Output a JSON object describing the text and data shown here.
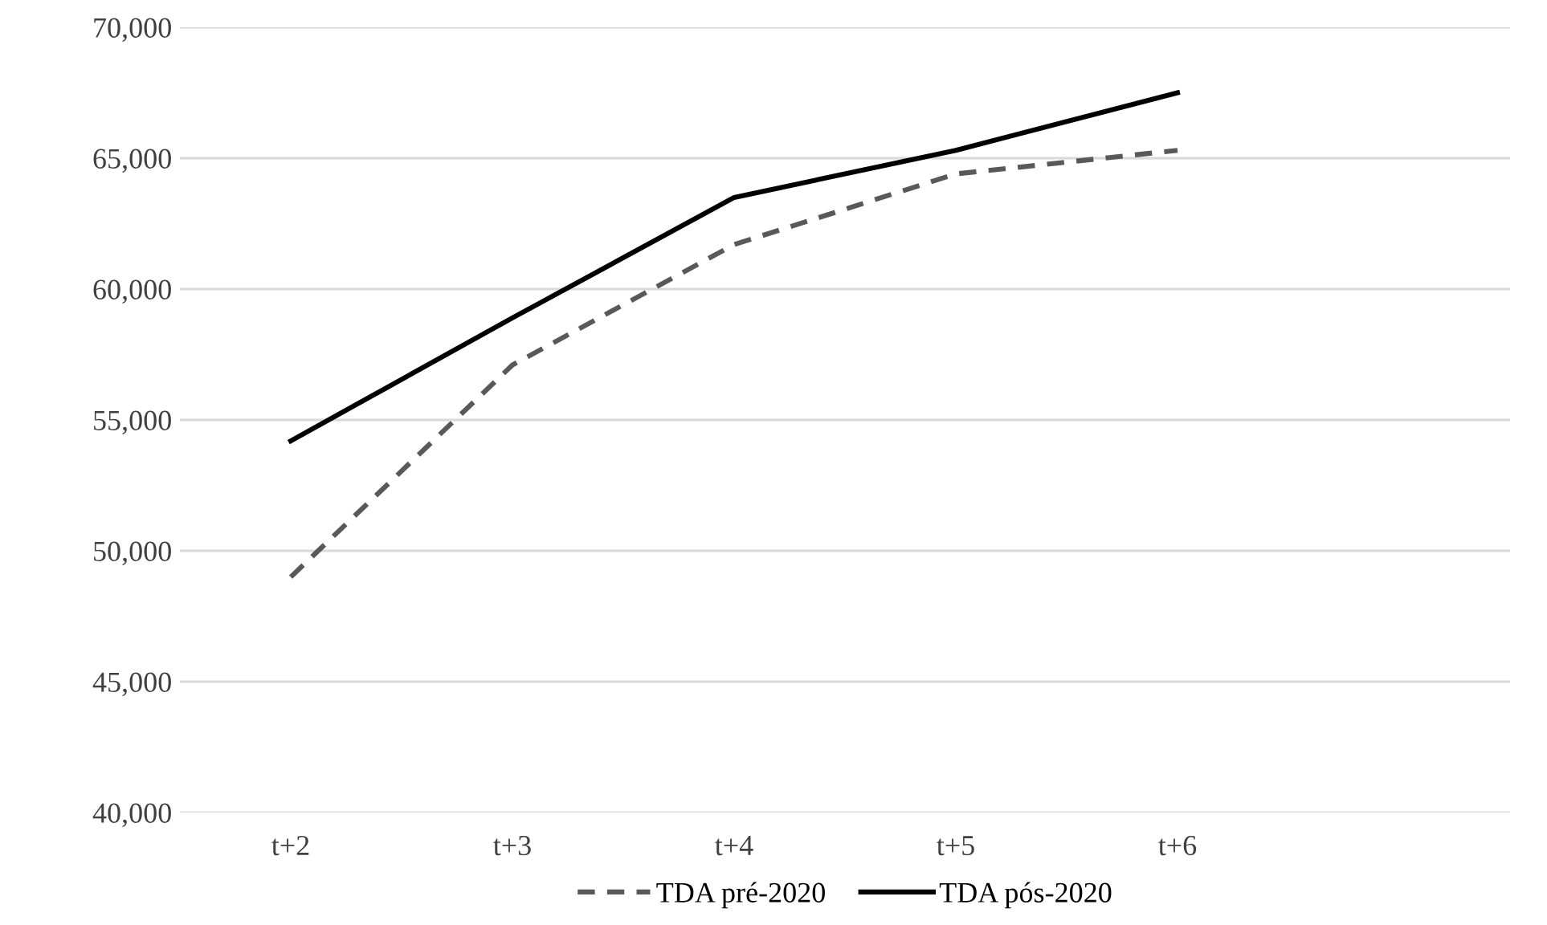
{
  "chart_data": {
    "type": "line",
    "categories": [
      "t+2",
      "t+3",
      "t+4",
      "t+5",
      "t+6",
      null
    ],
    "series": [
      {
        "name": "TDA pré-2020",
        "color": "#595959",
        "line_style": "dashed",
        "values": [
          49000,
          57100,
          61700,
          64400,
          65300,
          null
        ]
      },
      {
        "name": "TDA pós-2020",
        "color": "#000000",
        "line_style": "solid",
        "values": [
          54200,
          58900,
          63500,
          65300,
          67500,
          null
        ]
      }
    ],
    "ylim": [
      40000,
      70000
    ],
    "yticks": [
      {
        "value": 40000,
        "label": "40,000"
      },
      {
        "value": 45000,
        "label": "45,000"
      },
      {
        "value": 50000,
        "label": "50,000"
      },
      {
        "value": 55000,
        "label": "55,000"
      },
      {
        "value": 60000,
        "label": "60,000"
      },
      {
        "value": 65000,
        "label": "65,000"
      },
      {
        "value": 70000,
        "label": "70,000"
      }
    ],
    "grid": "y",
    "legend": "bottom",
    "marker": "none"
  }
}
